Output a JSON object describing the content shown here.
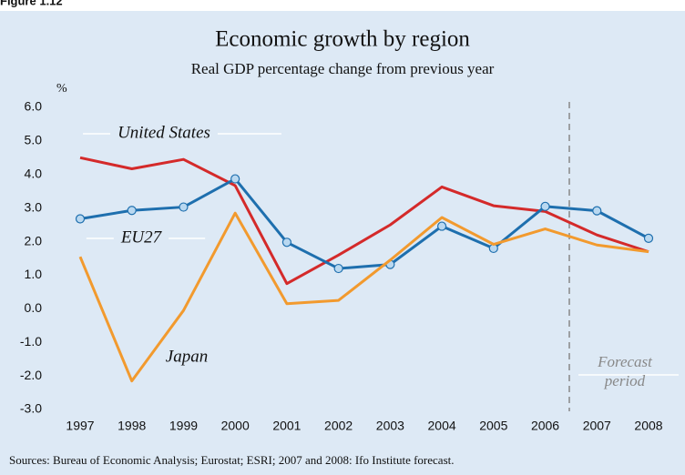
{
  "chart_data": {
    "type": "line",
    "figure_label": "Figure 1.12",
    "title": "Economic growth by region",
    "subtitle": "Real GDP percentage change from previous year",
    "y_unit": "%",
    "source": "Sources: Bureau of Economic Analysis; Eurostat; ESRI; 2007 and 2008: Ifo Institute forecast.",
    "forecast_label": "Forecast period",
    "categories": [
      "1997",
      "1998",
      "1999",
      "2000",
      "2001",
      "2002",
      "2003",
      "2004",
      "2005",
      "2006",
      "2007",
      "2008"
    ],
    "series": [
      {
        "name": "United States",
        "color": "#d42a2a",
        "markers": false,
        "values": [
          4.5,
          4.17,
          4.45,
          3.67,
          0.75,
          1.6,
          2.5,
          3.63,
          3.07,
          2.9,
          2.2,
          1.7
        ]
      },
      {
        "name": "EU27",
        "color": "#1e6fae",
        "markers": true,
        "values": [
          2.68,
          2.93,
          3.03,
          3.87,
          1.98,
          1.2,
          1.32,
          2.46,
          1.8,
          3.05,
          2.92,
          2.1
        ]
      },
      {
        "name": "Japan",
        "color": "#f29a2e",
        "markers": false,
        "values": [
          1.55,
          -2.15,
          -0.05,
          2.85,
          0.15,
          0.25,
          1.45,
          2.72,
          1.92,
          2.38,
          1.9,
          1.7
        ]
      }
    ],
    "ylim": [
      -3,
      6
    ],
    "yticks": [
      {
        "value": -3,
        "label": "-3.0"
      },
      {
        "value": -2,
        "label": "-2.0"
      },
      {
        "value": -1,
        "label": "-1.0"
      },
      {
        "value": 0,
        "label": "0.0"
      },
      {
        "value": 1,
        "label": "1.0"
      },
      {
        "value": 2,
        "label": "2.0"
      },
      {
        "value": 3,
        "label": "3.0"
      },
      {
        "value": 4,
        "label": "4.0"
      },
      {
        "value": 5,
        "label": "5.0"
      },
      {
        "value": 6,
        "label": "6.0"
      }
    ],
    "grid": false
  }
}
